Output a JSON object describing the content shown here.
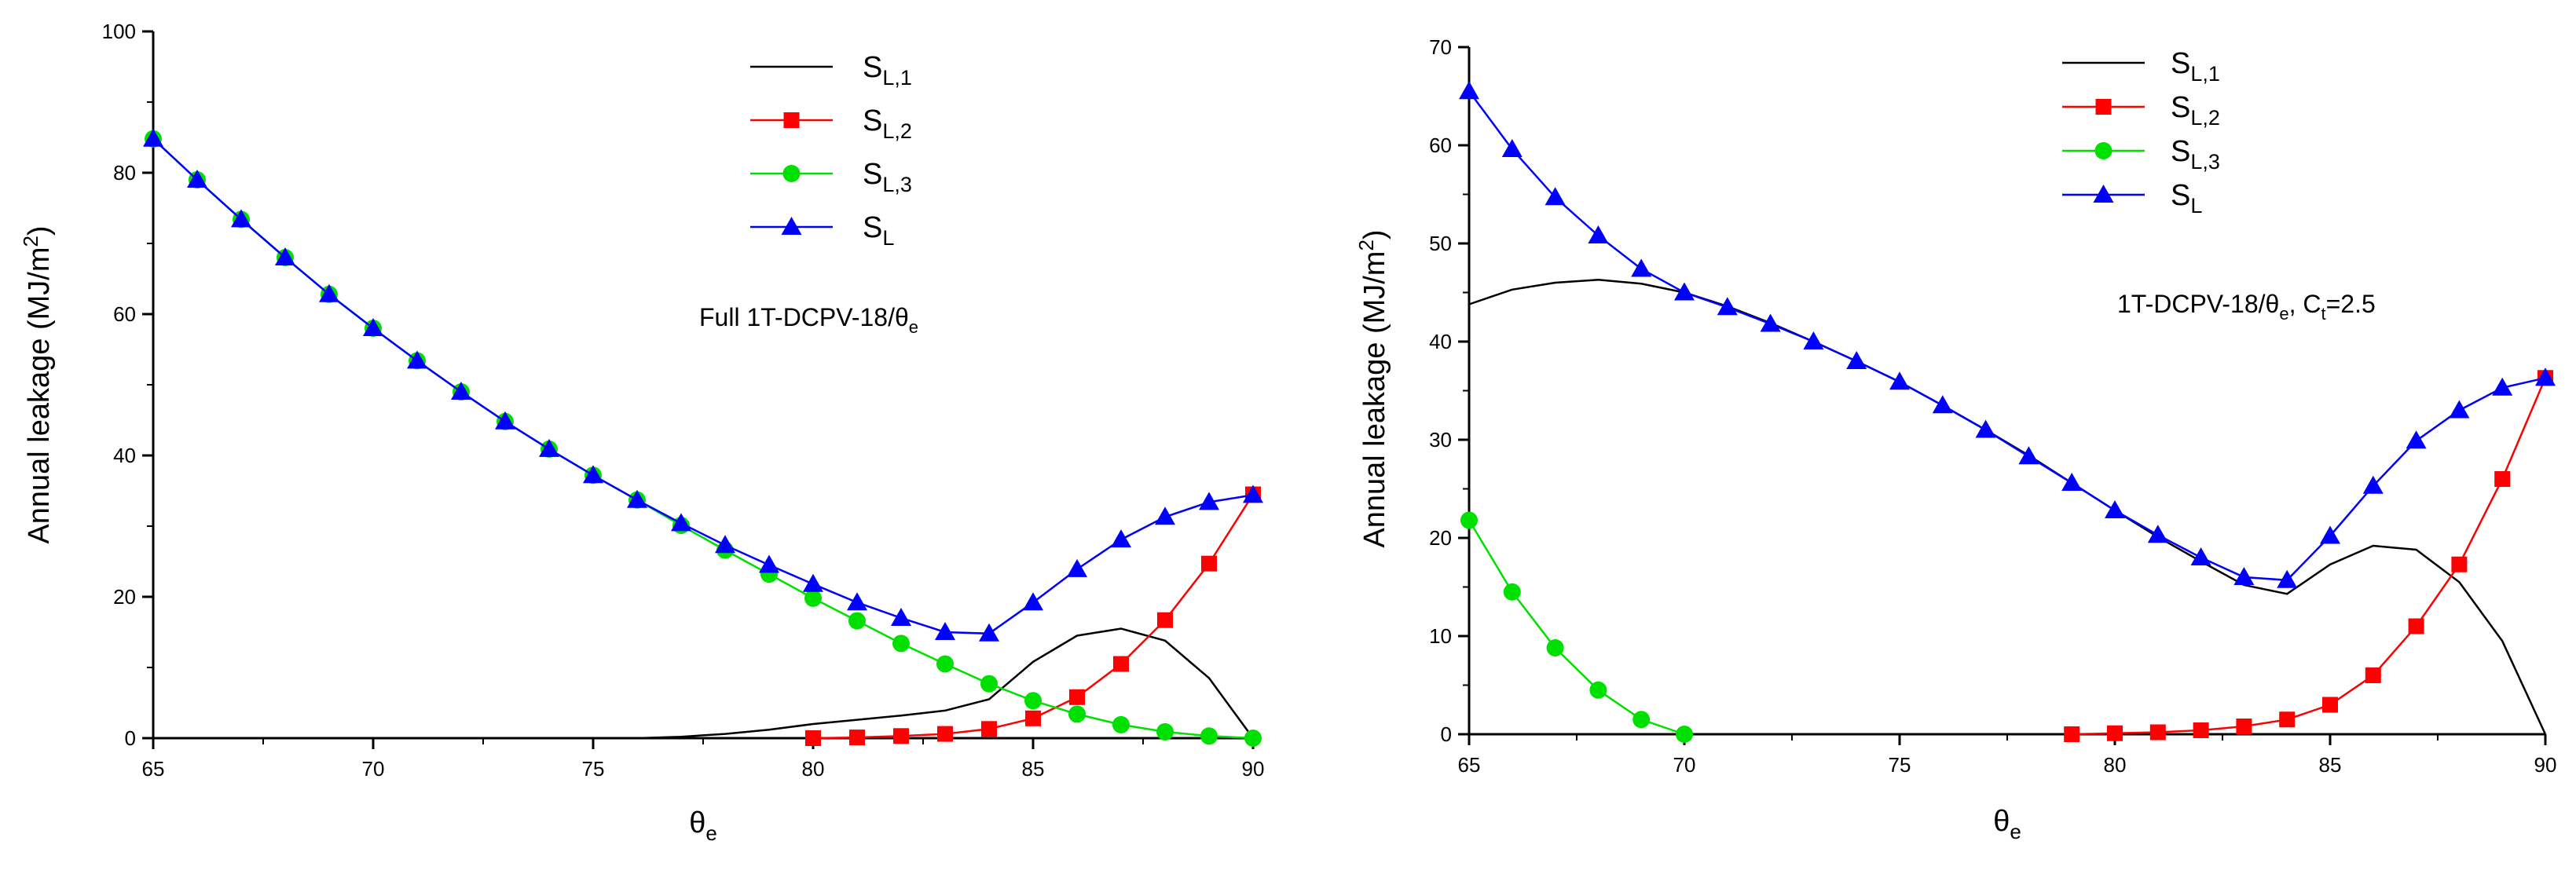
{
  "chart_data": [
    {
      "type": "line",
      "xlabel": "θe",
      "xlabel_main": "θ",
      "xlabel_sub": "e",
      "ylabel": "Annual leakage (MJ/m2)",
      "ylabel_main": "Annual leakage (MJ/m",
      "ylabel_sup": "2",
      "ylabel_close": ")",
      "xlim": [
        65,
        90
      ],
      "ylim": [
        0,
        100
      ],
      "xticks": [
        65,
        70,
        75,
        80,
        85,
        90
      ],
      "yticks": [
        0,
        20,
        40,
        60,
        80,
        100
      ],
      "annotation": "Full 1T-DCPV-18/θe",
      "annotation_main": "Full 1T-DCPV-18/θ",
      "annotation_sub": "e",
      "annotation_rest": "",
      "legend_placement": "top-center",
      "series": [
        {
          "name": "SL,1",
          "name_main": "S",
          "name_sub": "L,1",
          "color": "#000000",
          "marker": "none",
          "x": [
            65,
            66,
            67,
            68,
            69,
            70,
            71,
            72,
            73,
            74,
            75,
            76,
            77,
            78,
            79,
            80,
            81,
            82,
            83,
            84,
            85,
            86,
            87,
            88,
            89,
            90
          ],
          "y": [
            0,
            0,
            0,
            0,
            0,
            0,
            0,
            0,
            0,
            0,
            0,
            0,
            0.2,
            0.6,
            1.2,
            2.0,
            2.6,
            3.2,
            3.9,
            5.5,
            10.8,
            14.5,
            15.5,
            13.8,
            8.5,
            0
          ]
        },
        {
          "name": "SL,2",
          "name_main": "S",
          "name_sub": "L,2",
          "color": "#ff0000",
          "marker": "square",
          "x": [
            80,
            81,
            82,
            83,
            84,
            85,
            86,
            87,
            88,
            89,
            90
          ],
          "y": [
            0,
            0.1,
            0.3,
            0.6,
            1.3,
            2.8,
            5.8,
            10.5,
            16.7,
            24.7,
            34.5
          ]
        },
        {
          "name": "SL,3",
          "name_main": "S",
          "name_sub": "L,3",
          "color": "#00e000",
          "marker": "circle",
          "x": [
            65,
            66,
            67,
            68,
            69,
            70,
            71,
            72,
            73,
            74,
            75,
            76,
            77,
            78,
            79,
            80,
            81,
            82,
            83,
            84,
            85,
            86,
            87,
            88,
            89,
            90
          ],
          "y": [
            84.8,
            79.0,
            73.4,
            68.0,
            62.8,
            58.0,
            53.4,
            49.0,
            44.8,
            40.9,
            37.2,
            33.7,
            30.1,
            26.6,
            23.2,
            19.8,
            16.6,
            13.4,
            10.5,
            7.7,
            5.3,
            3.4,
            1.9,
            0.9,
            0.3,
            0
          ]
        },
        {
          "name": "SL",
          "name_main": "S",
          "name_sub": "L",
          "color": "#0000ff",
          "marker": "triangle",
          "x": [
            65,
            66,
            67,
            68,
            69,
            70,
            71,
            72,
            73,
            74,
            75,
            76,
            77,
            78,
            79,
            80,
            81,
            82,
            83,
            84,
            85,
            86,
            87,
            88,
            89,
            90
          ],
          "y": [
            84.8,
            79.0,
            73.4,
            68.0,
            62.8,
            58.0,
            53.4,
            49.0,
            44.8,
            40.9,
            37.2,
            33.7,
            30.4,
            27.3,
            24.5,
            21.8,
            19.2,
            17.0,
            15.0,
            14.8,
            19.2,
            23.9,
            28.1,
            31.3,
            33.4,
            34.4
          ]
        }
      ]
    },
    {
      "type": "line",
      "xlabel": "θe",
      "xlabel_main": "θ",
      "xlabel_sub": "e",
      "ylabel": "Annual leakage (MJ/m2)",
      "ylabel_main": "Annual leakage (MJ/m",
      "ylabel_sup": "2",
      "ylabel_close": ")",
      "xlim": [
        65,
        90
      ],
      "ylim": [
        0,
        70
      ],
      "xticks": [
        65,
        70,
        75,
        80,
        85,
        90
      ],
      "yticks": [
        0,
        10,
        20,
        30,
        40,
        50,
        60,
        70
      ],
      "annotation": "1T-DCPV-18/θe, Ct=2.5",
      "annotation_main": "1T-DCPV-18/θ",
      "annotation_sub": "e",
      "annotation_rest": ", C",
      "annotation_sub2": "t",
      "annotation_tail": "=2.5",
      "legend_placement": "top-center",
      "series": [
        {
          "name": "SL,1",
          "name_main": "S",
          "name_sub": "L,1",
          "color": "#000000",
          "marker": "none",
          "x": [
            65,
            66,
            67,
            68,
            69,
            70,
            71,
            72,
            73,
            74,
            75,
            76,
            77,
            78,
            79,
            80,
            81,
            82,
            83,
            84,
            85,
            86,
            87,
            88,
            89,
            90
          ],
          "y": [
            43.8,
            45.3,
            46.0,
            46.3,
            45.9,
            45.0,
            43.6,
            41.9,
            40.0,
            38.0,
            35.9,
            33.5,
            31.0,
            28.4,
            25.6,
            22.8,
            20.1,
            17.6,
            15.2,
            14.3,
            17.3,
            19.2,
            18.8,
            15.5,
            9.5,
            0
          ]
        },
        {
          "name": "SL,2",
          "name_main": "S",
          "name_sub": "L,2",
          "color": "#ff0000",
          "marker": "square",
          "x": [
            79,
            80,
            81,
            82,
            83,
            84,
            85,
            86,
            87,
            88,
            89,
            90
          ],
          "y": [
            0,
            0.1,
            0.2,
            0.4,
            0.8,
            1.5,
            3.0,
            6.0,
            11.0,
            17.3,
            26.0,
            36.3
          ]
        },
        {
          "name": "SL,3",
          "name_main": "S",
          "name_sub": "L,3",
          "color": "#00e000",
          "marker": "circle",
          "x": [
            65,
            66,
            67,
            68,
            69,
            70
          ],
          "y": [
            21.8,
            14.5,
            8.8,
            4.5,
            1.5,
            0
          ]
        },
        {
          "name": "SL",
          "name_main": "S",
          "name_sub": "L",
          "color": "#0000ff",
          "marker": "triangle",
          "x": [
            65,
            66,
            67,
            68,
            69,
            70,
            71,
            72,
            73,
            74,
            75,
            76,
            77,
            78,
            79,
            80,
            81,
            82,
            83,
            84,
            85,
            86,
            87,
            88,
            89,
            90
          ],
          "y": [
            65.5,
            59.6,
            54.7,
            50.8,
            47.4,
            45.0,
            43.5,
            41.8,
            40.0,
            38.0,
            35.9,
            33.5,
            31.0,
            28.3,
            25.6,
            22.8,
            20.3,
            18.0,
            16.0,
            15.7,
            20.2,
            25.3,
            29.9,
            33.0,
            35.3,
            36.3
          ]
        }
      ]
    }
  ]
}
